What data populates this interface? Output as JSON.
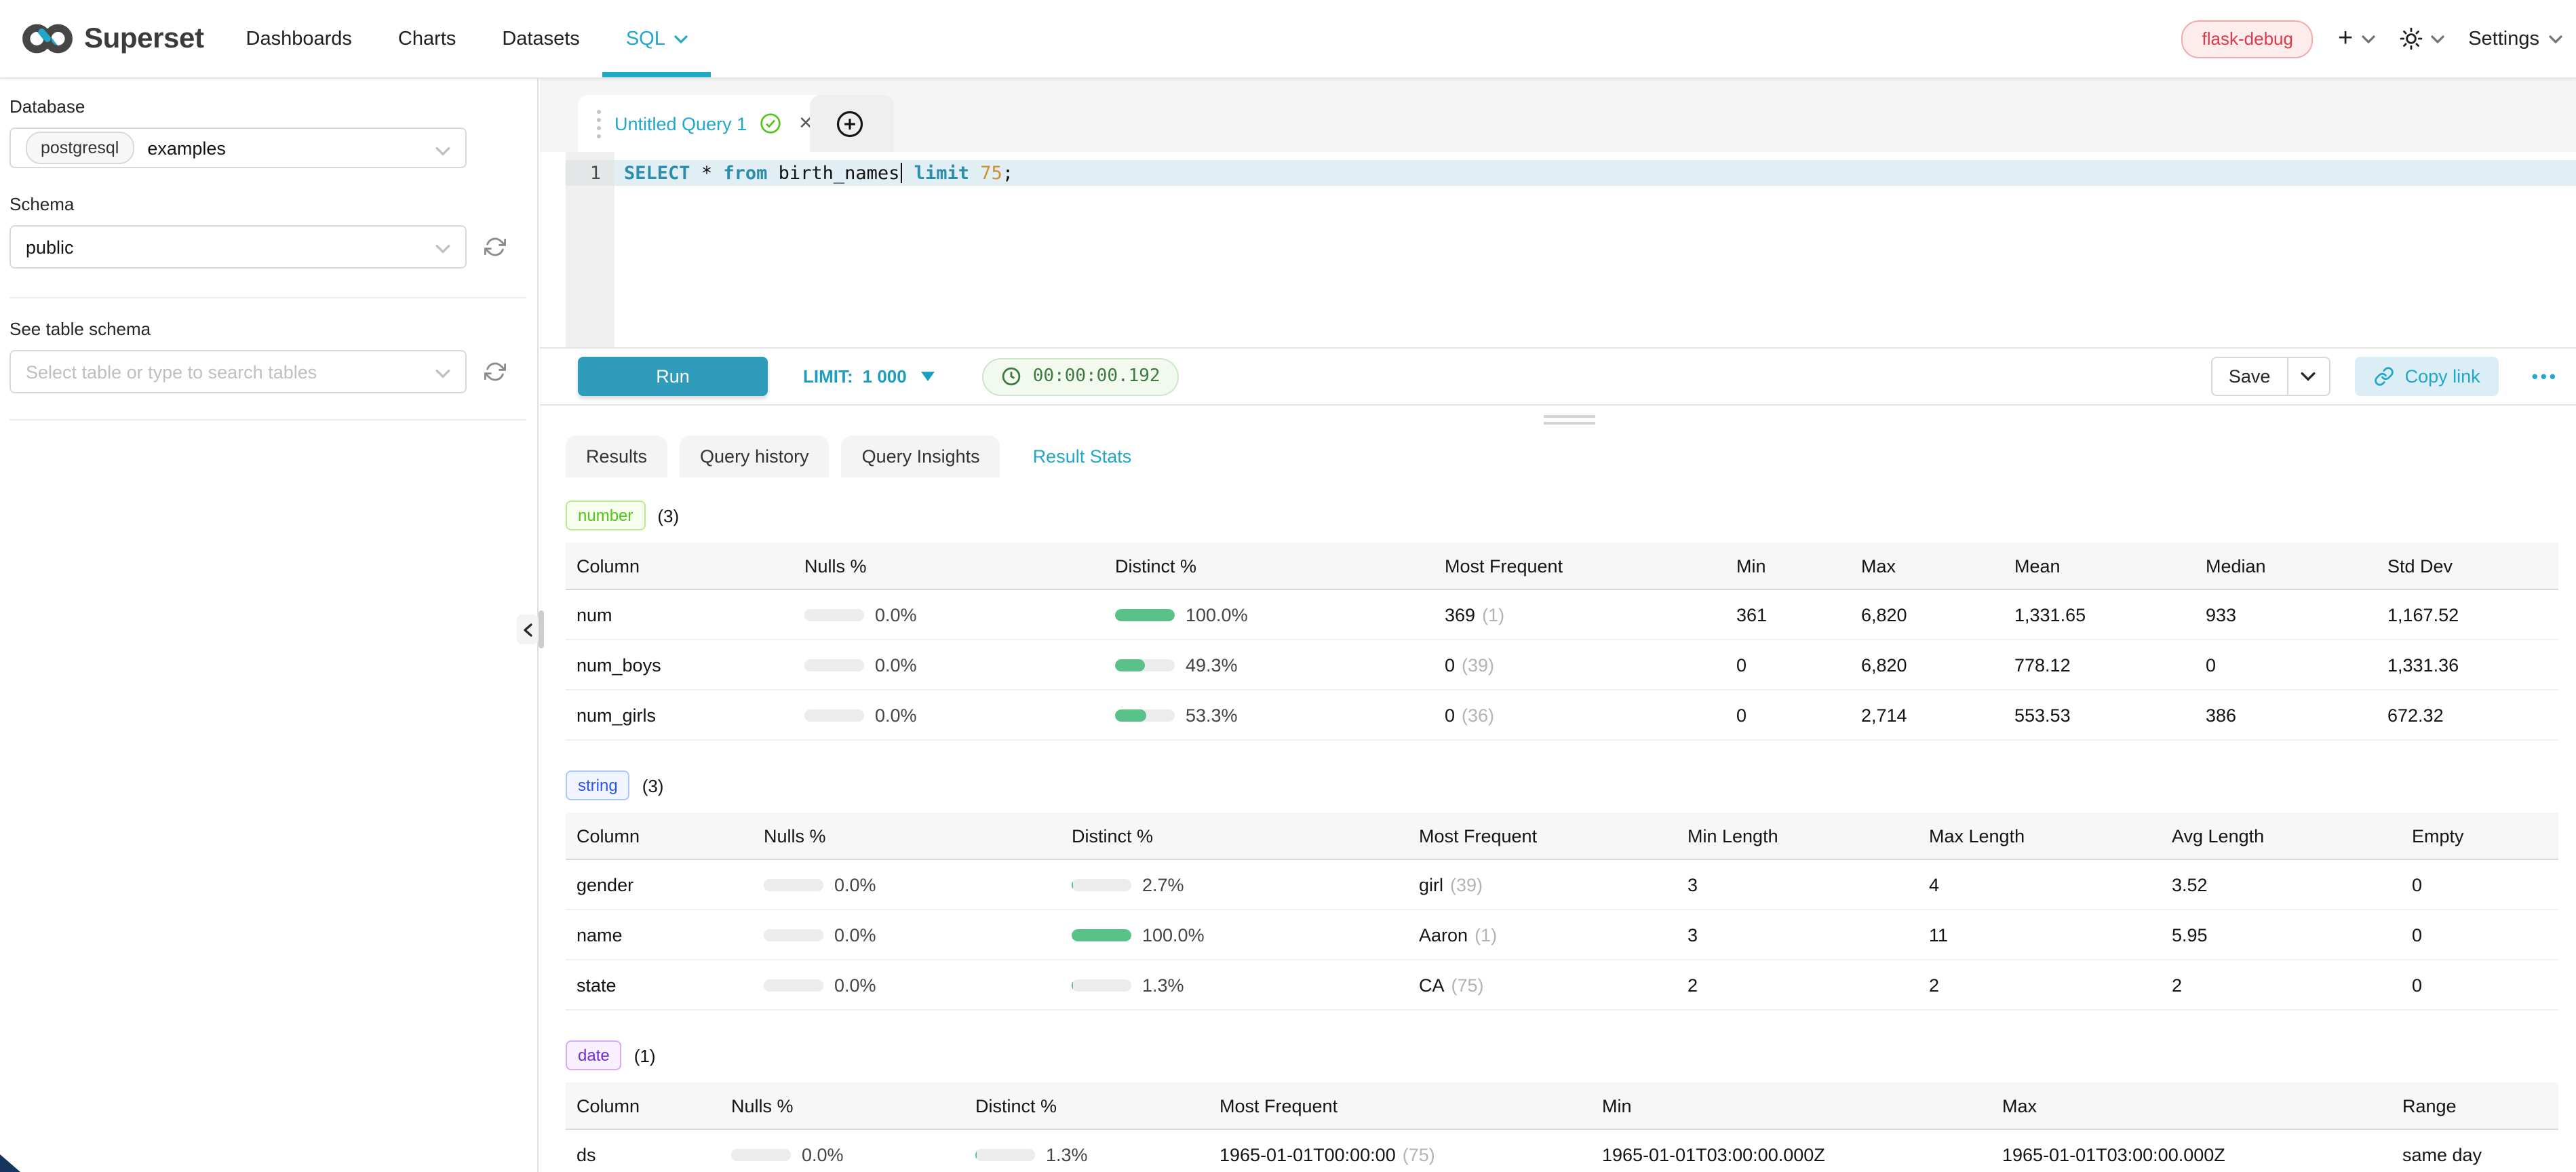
{
  "navbar": {
    "brand": "Superset",
    "items": [
      {
        "label": "Dashboards",
        "active": false
      },
      {
        "label": "Charts",
        "active": false
      },
      {
        "label": "Datasets",
        "active": false
      },
      {
        "label": "SQL",
        "active": true
      }
    ],
    "env_badge": "flask-debug",
    "settings_label": "Settings"
  },
  "sidebar": {
    "database_label": "Database",
    "database_tag": "postgresql",
    "database_value": "examples",
    "schema_label": "Schema",
    "schema_value": "public",
    "table_label": "See table schema",
    "table_placeholder": "Select table or type to search tables"
  },
  "editor": {
    "tab_title": "Untitled Query 1",
    "line_number": "1",
    "tokens": [
      {
        "text": "SELECT",
        "type": "kw"
      },
      {
        "text": " * ",
        "type": "plain"
      },
      {
        "text": "from",
        "type": "kw"
      },
      {
        "text": " birth_names",
        "type": "plain",
        "cursor_after": true
      },
      {
        "text": " limit",
        "type": "kw"
      },
      {
        "text": " 75",
        "type": "num"
      },
      {
        "text": ";",
        "type": "plain"
      }
    ]
  },
  "toolbar": {
    "run_label": "Run",
    "limit_label": "LIMIT:",
    "limit_value": "1 000",
    "timer": "00:00:00.192",
    "save_label": "Save",
    "copy_link_label": "Copy link"
  },
  "result_tabs": [
    {
      "label": "Results",
      "active": false
    },
    {
      "label": "Query history",
      "active": false
    },
    {
      "label": "Query Insights",
      "active": false
    },
    {
      "label": "Result Stats",
      "active": true
    }
  ],
  "sections": [
    {
      "tag": "number",
      "count": "(3)",
      "palette": "green",
      "columns": [
        "Column",
        "Nulls %",
        "Distinct %",
        "Most Frequent",
        "Min",
        "Max",
        "Mean",
        "Median",
        "Std Dev"
      ],
      "rows": [
        {
          "column": "num",
          "nulls": {
            "pct": "0.0%",
            "fill": 0
          },
          "distinct": {
            "pct": "100.0%",
            "fill": 100
          },
          "most_frequent": {
            "value": "369",
            "count": "(1)"
          },
          "values": [
            "361",
            "6,820",
            "1,331.65",
            "933",
            "1,167.52"
          ]
        },
        {
          "column": "num_boys",
          "nulls": {
            "pct": "0.0%",
            "fill": 0
          },
          "distinct": {
            "pct": "49.3%",
            "fill": 49.3
          },
          "most_frequent": {
            "value": "0",
            "count": "(39)"
          },
          "values": [
            "0",
            "6,820",
            "778.12",
            "0",
            "1,331.36"
          ]
        },
        {
          "column": "num_girls",
          "nulls": {
            "pct": "0.0%",
            "fill": 0
          },
          "distinct": {
            "pct": "53.3%",
            "fill": 53.3
          },
          "most_frequent": {
            "value": "0",
            "count": "(36)"
          },
          "values": [
            "0",
            "2,714",
            "553.53",
            "386",
            "672.32"
          ]
        }
      ]
    },
    {
      "tag": "string",
      "count": "(3)",
      "palette": "blue",
      "columns": [
        "Column",
        "Nulls %",
        "Distinct %",
        "Most Frequent",
        "Min Length",
        "Max Length",
        "Avg Length",
        "Empty"
      ],
      "rows": [
        {
          "column": "gender",
          "nulls": {
            "pct": "0.0%",
            "fill": 0
          },
          "distinct": {
            "pct": "2.7%",
            "fill": 2.7
          },
          "most_frequent": {
            "value": "girl",
            "count": "(39)"
          },
          "values": [
            "3",
            "4",
            "3.52",
            "0"
          ]
        },
        {
          "column": "name",
          "nulls": {
            "pct": "0.0%",
            "fill": 0
          },
          "distinct": {
            "pct": "100.0%",
            "fill": 100
          },
          "most_frequent": {
            "value": "Aaron",
            "count": "(1)"
          },
          "values": [
            "3",
            "11",
            "5.95",
            "0"
          ]
        },
        {
          "column": "state",
          "nulls": {
            "pct": "0.0%",
            "fill": 0
          },
          "distinct": {
            "pct": "1.3%",
            "fill": 1.3
          },
          "most_frequent": {
            "value": "CA",
            "count": "(75)"
          },
          "values": [
            "2",
            "2",
            "2",
            "0"
          ]
        }
      ]
    },
    {
      "tag": "date",
      "count": "(1)",
      "palette": "purple",
      "columns": [
        "Column",
        "Nulls %",
        "Distinct %",
        "Most Frequent",
        "Min",
        "Max",
        "Range"
      ],
      "rows": [
        {
          "column": "ds",
          "nulls": {
            "pct": "0.0%",
            "fill": 0
          },
          "distinct": {
            "pct": "1.3%",
            "fill": 1.3
          },
          "most_frequent": {
            "value": "1965-01-01T00:00:00",
            "count": "(75)"
          },
          "values": [
            "1965-01-01T03:00:00.000Z",
            "1965-01-01T03:00:00.000Z",
            "same day"
          ]
        }
      ]
    }
  ],
  "icons": {
    "close_glyph": "✕",
    "ellipsis_glyph": "•••"
  },
  "colors": {
    "primary": "#20a7c9",
    "bar_green": "#5ac189",
    "badge_red": "#d93b4d",
    "timer_green": "#3d7a43"
  }
}
